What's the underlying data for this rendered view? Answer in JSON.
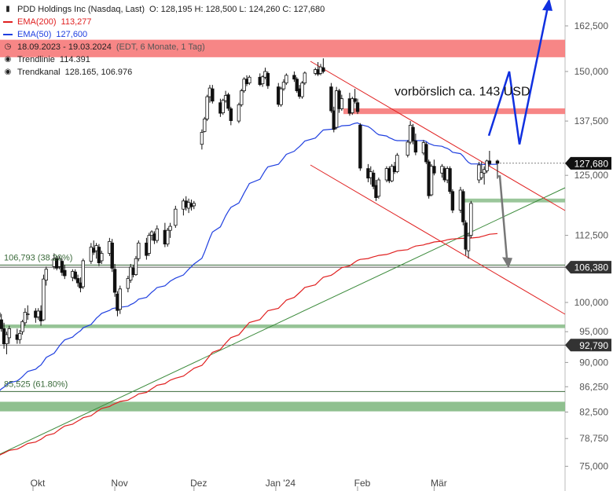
{
  "header": {
    "instrument": "PDD Holdings Inc (Nasdaq, Last)",
    "ohlc": "O: 128,195  H: 128,500  L: 124,260  C: 127,680"
  },
  "legend": [
    {
      "label": "EMA(200)",
      "value": "113,277",
      "color": "#e02020",
      "kind": "line"
    },
    {
      "label": "EMA(50)",
      "value": "127,600",
      "color": "#2040e0",
      "kind": "line"
    },
    {
      "label": "18.09.2023 - 19.03.2024",
      "value": "(EDT, 6 Monate, 1 Tag)",
      "kind": "clock-icon"
    },
    {
      "label": "Trendlinie",
      "value": "114.391",
      "kind": "target-icon"
    },
    {
      "label": "Trendkanal",
      "value": "128.165, 106.976",
      "kind": "target-icon"
    }
  ],
  "colors": {
    "candle": "#111111",
    "ema200": "#e02020",
    "ema50": "#2040e0",
    "trend_green": "#3a8a3a",
    "channel_red": "#e02020",
    "resistance_zone": "#f77f7f",
    "support_zone": "#8fc08f",
    "bullish_arrow": "#1030e0",
    "bearish_arrow": "#777777",
    "price_tag": "#111111"
  },
  "chart_data": {
    "type": "candlestick",
    "title": "PDD Holdings Inc (Nasdaq, Last)",
    "y_scale": "log",
    "y_ticks": [
      "162,500",
      "150,000",
      "137,500",
      "125,000",
      "112,500",
      "100,000",
      "95,000",
      "90,000",
      "86,250",
      "82,500",
      "78,750",
      "75,000"
    ],
    "x_ticks": [
      "Okt",
      "Nov",
      "Dez",
      "Jan '24",
      "Feb",
      "Mär"
    ],
    "price_tags": [
      "127,680",
      "106,380",
      "92,790"
    ],
    "fib_labels": [
      {
        "label": "106,793 (38.20%)",
        "value": 106.793
      },
      {
        "label": "85,525 (61.80%)",
        "value": 85.525
      }
    ],
    "annotation": "vorbörslich ca. 143 USD",
    "candles": [
      {
        "date": "2023-09-18",
        "o": 97.5,
        "h": 99.0,
        "l": 96.0,
        "c": 98.2
      },
      {
        "date": "2023-09-19",
        "o": 97.0,
        "h": 98.0,
        "l": 95.0,
        "c": 95.5
      },
      {
        "date": "2023-09-20",
        "o": 95.5,
        "h": 96.5,
        "l": 92.2,
        "c": 93.0
      },
      {
        "date": "2023-09-21",
        "o": 93.0,
        "h": 95.0,
        "l": 91.3,
        "c": 94.5
      },
      {
        "date": "2023-09-22",
        "o": 94.0,
        "h": 96.0,
        "l": 93.0,
        "c": 95.5
      },
      {
        "date": "2023-09-25",
        "o": 94.5,
        "h": 95.5,
        "l": 93.0,
        "c": 93.7
      },
      {
        "date": "2023-09-26",
        "o": 93.7,
        "h": 95.3,
        "l": 93.0,
        "c": 94.7
      },
      {
        "date": "2023-09-27",
        "o": 95.0,
        "h": 97.0,
        "l": 94.5,
        "c": 96.7
      },
      {
        "date": "2023-09-28",
        "o": 96.5,
        "h": 99.0,
        "l": 96.0,
        "c": 98.3
      },
      {
        "date": "2023-09-29",
        "o": 98.0,
        "h": 99.5,
        "l": 97.0,
        "c": 98.0
      },
      {
        "date": "2023-10-02",
        "o": 98.5,
        "h": 99.0,
        "l": 96.5,
        "c": 97.4
      },
      {
        "date": "2023-10-03",
        "o": 97.5,
        "h": 99.0,
        "l": 97.0,
        "c": 98.5
      },
      {
        "date": "2023-10-04",
        "o": 98.5,
        "h": 99.5,
        "l": 96.0,
        "c": 96.8
      },
      {
        "date": "2023-10-05",
        "o": 97.0,
        "h": 105.0,
        "l": 96.8,
        "c": 104.2
      },
      {
        "date": "2023-10-06",
        "o": 104.0,
        "h": 106.5,
        "l": 103.0,
        "c": 106.0
      },
      {
        "date": "2023-10-09",
        "o": 106.5,
        "h": 109.0,
        "l": 106.0,
        "c": 108.0
      },
      {
        "date": "2023-10-10",
        "o": 108.0,
        "h": 108.5,
        "l": 105.8,
        "c": 106.2
      },
      {
        "date": "2023-10-11",
        "o": 106.5,
        "h": 108.5,
        "l": 106.0,
        "c": 108.0
      },
      {
        "date": "2023-10-12",
        "o": 107.5,
        "h": 108.0,
        "l": 104.8,
        "c": 105.4
      },
      {
        "date": "2023-10-13",
        "o": 105.8,
        "h": 106.8,
        "l": 104.2,
        "c": 104.8
      },
      {
        "date": "2023-10-16",
        "o": 104.5,
        "h": 106.0,
        "l": 103.8,
        "c": 105.6
      },
      {
        "date": "2023-10-17",
        "o": 105.5,
        "h": 106.0,
        "l": 104.0,
        "c": 104.3
      },
      {
        "date": "2023-10-18",
        "o": 104.3,
        "h": 105.0,
        "l": 102.8,
        "c": 103.5
      },
      {
        "date": "2023-10-19",
        "o": 103.5,
        "h": 104.5,
        "l": 101.8,
        "c": 102.6
      },
      {
        "date": "2023-10-20",
        "o": 102.8,
        "h": 108.0,
        "l": 102.4,
        "c": 107.6
      },
      {
        "date": "2023-10-23",
        "o": 107.5,
        "h": 111.0,
        "l": 107.0,
        "c": 110.2
      },
      {
        "date": "2023-10-24",
        "o": 110.0,
        "h": 111.5,
        "l": 108.7,
        "c": 109.2
      },
      {
        "date": "2023-10-25",
        "o": 109.5,
        "h": 111.0,
        "l": 108.0,
        "c": 110.5
      },
      {
        "date": "2023-10-26",
        "o": 110.2,
        "h": 110.8,
        "l": 106.6,
        "c": 107.2
      },
      {
        "date": "2023-10-27",
        "o": 107.6,
        "h": 109.5,
        "l": 107.0,
        "c": 109.0
      },
      {
        "date": "2023-10-30",
        "o": 109.0,
        "h": 112.0,
        "l": 108.5,
        "c": 111.3
      },
      {
        "date": "2023-10-31",
        "o": 111.0,
        "h": 111.8,
        "l": 105.5,
        "c": 106.2
      },
      {
        "date": "2023-11-01",
        "o": 106.0,
        "h": 107.0,
        "l": 101.0,
        "c": 101.8
      },
      {
        "date": "2023-11-02",
        "o": 101.5,
        "h": 102.0,
        "l": 97.6,
        "c": 98.6
      },
      {
        "date": "2023-11-03",
        "o": 98.8,
        "h": 103.0,
        "l": 98.0,
        "c": 102.4
      },
      {
        "date": "2023-11-06",
        "o": 102.5,
        "h": 104.8,
        "l": 101.8,
        "c": 104.3
      },
      {
        "date": "2023-11-07",
        "o": 104.0,
        "h": 107.0,
        "l": 103.5,
        "c": 106.4
      },
      {
        "date": "2023-11-08",
        "o": 106.2,
        "h": 106.8,
        "l": 104.5,
        "c": 105.0
      },
      {
        "date": "2023-11-09",
        "o": 105.0,
        "h": 108.5,
        "l": 104.8,
        "c": 108.0
      },
      {
        "date": "2023-11-10",
        "o": 108.0,
        "h": 111.5,
        "l": 107.5,
        "c": 111.0
      },
      {
        "date": "2023-11-13",
        "o": 111.0,
        "h": 112.0,
        "l": 107.8,
        "c": 108.6
      },
      {
        "date": "2023-11-14",
        "o": 109.0,
        "h": 113.0,
        "l": 108.5,
        "c": 112.5
      },
      {
        "date": "2023-11-15",
        "o": 112.5,
        "h": 113.5,
        "l": 111.5,
        "c": 113.2
      },
      {
        "date": "2023-11-16",
        "o": 112.8,
        "h": 113.3,
        "l": 110.8,
        "c": 111.5
      },
      {
        "date": "2023-11-17",
        "o": 111.5,
        "h": 114.5,
        "l": 111.0,
        "c": 113.8
      },
      {
        "date": "2023-11-20",
        "o": 113.5,
        "h": 115.0,
        "l": 110.2,
        "c": 110.8
      },
      {
        "date": "2023-11-21",
        "o": 110.8,
        "h": 114.0,
        "l": 110.3,
        "c": 113.5
      },
      {
        "date": "2023-11-22",
        "o": 113.5,
        "h": 115.0,
        "l": 112.0,
        "c": 114.3
      },
      {
        "date": "2023-11-24",
        "o": 114.5,
        "h": 118.5,
        "l": 114.0,
        "c": 117.8
      },
      {
        "date": "2023-11-27",
        "o": 117.8,
        "h": 120.0,
        "l": 116.5,
        "c": 119.5
      },
      {
        "date": "2023-11-28",
        "o": 119.5,
        "h": 120.5,
        "l": 117.5,
        "c": 118.2
      },
      {
        "date": "2023-11-29",
        "o": 118.0,
        "h": 120.0,
        "l": 117.0,
        "c": 119.2
      },
      {
        "date": "2023-11-30",
        "o": 119.0,
        "h": 119.8,
        "l": 117.5,
        "c": 118.3
      },
      {
        "date": "2023-12-01",
        "o": 118.5,
        "h": 119.5,
        "l": 117.8,
        "c": 119.0
      },
      {
        "date": "2023-12-04",
        "o": 132.0,
        "h": 135.5,
        "l": 130.8,
        "c": 134.8
      },
      {
        "date": "2023-12-05",
        "o": 135.0,
        "h": 138.5,
        "l": 134.8,
        "c": 138.0
      },
      {
        "date": "2023-12-06",
        "o": 138.0,
        "h": 144.0,
        "l": 137.5,
        "c": 143.5
      },
      {
        "date": "2023-12-07",
        "o": 143.5,
        "h": 146.5,
        "l": 142.0,
        "c": 145.7
      },
      {
        "date": "2023-12-08",
        "o": 145.5,
        "h": 146.5,
        "l": 141.8,
        "c": 142.4
      },
      {
        "date": "2023-12-11",
        "o": 142.0,
        "h": 143.0,
        "l": 138.5,
        "c": 139.4
      },
      {
        "date": "2023-12-12",
        "o": 139.5,
        "h": 143.0,
        "l": 139.0,
        "c": 142.6
      },
      {
        "date": "2023-12-13",
        "o": 142.5,
        "h": 145.0,
        "l": 142.0,
        "c": 143.8
      },
      {
        "date": "2023-12-14",
        "o": 144.0,
        "h": 144.5,
        "l": 140.0,
        "c": 140.6
      },
      {
        "date": "2023-12-15",
        "o": 140.5,
        "h": 141.0,
        "l": 136.5,
        "c": 137.6
      },
      {
        "date": "2023-12-18",
        "o": 137.5,
        "h": 142.0,
        "l": 137.0,
        "c": 141.5
      },
      {
        "date": "2023-12-19",
        "o": 141.5,
        "h": 145.5,
        "l": 141.0,
        "c": 145.0
      },
      {
        "date": "2023-12-20",
        "o": 145.0,
        "h": 148.5,
        "l": 144.5,
        "c": 148.0
      },
      {
        "date": "2023-12-21",
        "o": 148.0,
        "h": 149.0,
        "l": 146.2,
        "c": 146.8
      },
      {
        "date": "2023-12-22",
        "o": 147.0,
        "h": 149.0,
        "l": 146.5,
        "c": 148.5
      },
      {
        "date": "2023-12-26",
        "o": 148.5,
        "h": 149.5,
        "l": 146.2,
        "c": 146.6
      },
      {
        "date": "2023-12-27",
        "o": 146.8,
        "h": 149.0,
        "l": 146.0,
        "c": 148.6
      },
      {
        "date": "2023-12-28",
        "o": 148.5,
        "h": 151.0,
        "l": 148.0,
        "c": 150.0
      },
      {
        "date": "2023-12-29",
        "o": 149.5,
        "h": 150.0,
        "l": 145.5,
        "c": 146.3
      },
      {
        "date": "2024-01-02",
        "o": 146.0,
        "h": 147.0,
        "l": 141.0,
        "c": 141.6
      },
      {
        "date": "2024-01-03",
        "o": 141.5,
        "h": 146.0,
        "l": 141.0,
        "c": 145.5
      },
      {
        "date": "2024-01-04",
        "o": 145.5,
        "h": 148.0,
        "l": 145.0,
        "c": 147.2
      },
      {
        "date": "2024-01-05",
        "o": 147.0,
        "h": 149.5,
        "l": 146.5,
        "c": 149.0
      },
      {
        "date": "2024-01-08",
        "o": 149.0,
        "h": 150.0,
        "l": 147.3,
        "c": 148.0
      },
      {
        "date": "2024-01-09",
        "o": 148.0,
        "h": 148.5,
        "l": 144.5,
        "c": 145.0
      },
      {
        "date": "2024-01-10",
        "o": 145.5,
        "h": 146.5,
        "l": 143.0,
        "c": 143.6
      },
      {
        "date": "2024-01-11",
        "o": 143.5,
        "h": 147.5,
        "l": 143.0,
        "c": 147.0
      },
      {
        "date": "2024-01-12",
        "o": 147.0,
        "h": 150.0,
        "l": 146.5,
        "c": 149.6
      },
      {
        "date": "2024-01-16",
        "o": 149.5,
        "h": 151.0,
        "l": 149.0,
        "c": 150.5
      },
      {
        "date": "2024-01-17",
        "o": 150.5,
        "h": 152.5,
        "l": 148.8,
        "c": 149.3
      },
      {
        "date": "2024-01-18",
        "o": 149.5,
        "h": 152.0,
        "l": 149.0,
        "c": 151.2
      },
      {
        "date": "2024-01-19",
        "o": 151.0,
        "h": 153.5,
        "l": 149.5,
        "c": 150.0
      },
      {
        "date": "2024-01-22",
        "o": 146.0,
        "h": 147.0,
        "l": 139.5,
        "c": 140.0
      },
      {
        "date": "2024-01-23",
        "o": 140.0,
        "h": 141.0,
        "l": 134.8,
        "c": 135.5
      },
      {
        "date": "2024-01-24",
        "o": 136.0,
        "h": 146.0,
        "l": 135.5,
        "c": 145.0
      },
      {
        "date": "2024-01-25",
        "o": 145.0,
        "h": 145.5,
        "l": 139.5,
        "c": 140.5
      },
      {
        "date": "2024-01-26",
        "o": 140.5,
        "h": 144.0,
        "l": 140.0,
        "c": 143.0
      },
      {
        "date": "2024-01-29",
        "o": 143.0,
        "h": 144.5,
        "l": 138.8,
        "c": 139.4
      },
      {
        "date": "2024-01-30",
        "o": 139.5,
        "h": 143.5,
        "l": 139.0,
        "c": 143.0
      },
      {
        "date": "2024-01-31",
        "o": 143.0,
        "h": 145.5,
        "l": 141.8,
        "c": 142.3
      },
      {
        "date": "2024-02-01",
        "o": 142.0,
        "h": 143.0,
        "l": 139.2,
        "c": 139.8
      },
      {
        "date": "2024-02-02",
        "o": 136.5,
        "h": 137.0,
        "l": 126.0,
        "c": 126.6
      },
      {
        "date": "2024-02-05",
        "o": 126.5,
        "h": 127.5,
        "l": 123.5,
        "c": 124.4
      },
      {
        "date": "2024-02-06",
        "o": 124.5,
        "h": 127.0,
        "l": 123.0,
        "c": 125.8
      },
      {
        "date": "2024-02-07",
        "o": 125.5,
        "h": 126.2,
        "l": 122.0,
        "c": 122.6
      },
      {
        "date": "2024-02-08",
        "o": 122.8,
        "h": 124.0,
        "l": 119.5,
        "c": 120.2
      },
      {
        "date": "2024-02-09",
        "o": 120.5,
        "h": 124.5,
        "l": 120.0,
        "c": 124.0
      },
      {
        "date": "2024-02-12",
        "o": 124.0,
        "h": 127.0,
        "l": 123.5,
        "c": 126.5
      },
      {
        "date": "2024-02-13",
        "o": 126.5,
        "h": 127.0,
        "l": 123.3,
        "c": 123.8
      },
      {
        "date": "2024-02-14",
        "o": 123.8,
        "h": 127.5,
        "l": 123.5,
        "c": 127.0
      },
      {
        "date": "2024-02-15",
        "o": 127.0,
        "h": 128.0,
        "l": 125.3,
        "c": 125.8
      },
      {
        "date": "2024-02-16",
        "o": 125.8,
        "h": 130.0,
        "l": 125.5,
        "c": 129.5
      },
      {
        "date": "2024-02-20",
        "o": 129.5,
        "h": 133.0,
        "l": 129.0,
        "c": 132.5
      },
      {
        "date": "2024-02-21",
        "o": 132.5,
        "h": 137.5,
        "l": 132.0,
        "c": 136.5
      },
      {
        "date": "2024-02-22",
        "o": 136.0,
        "h": 136.8,
        "l": 132.0,
        "c": 132.8
      },
      {
        "date": "2024-02-23",
        "o": 132.8,
        "h": 134.5,
        "l": 129.5,
        "c": 130.2
      },
      {
        "date": "2024-02-26",
        "o": 130.0,
        "h": 133.0,
        "l": 129.5,
        "c": 132.4
      },
      {
        "date": "2024-02-27",
        "o": 132.0,
        "h": 132.5,
        "l": 127.5,
        "c": 128.0
      },
      {
        "date": "2024-02-28",
        "o": 128.0,
        "h": 128.5,
        "l": 120.0,
        "c": 120.6
      },
      {
        "date": "2024-02-29",
        "o": 120.8,
        "h": 127.5,
        "l": 120.5,
        "c": 127.0
      },
      {
        "date": "2024-03-01",
        "o": 127.0,
        "h": 128.5,
        "l": 125.0,
        "c": 125.5
      },
      {
        "date": "2024-03-04",
        "o": 125.5,
        "h": 127.5,
        "l": 124.5,
        "c": 127.0
      },
      {
        "date": "2024-03-05",
        "o": 126.5,
        "h": 127.0,
        "l": 123.5,
        "c": 124.0
      },
      {
        "date": "2024-03-06",
        "o": 124.0,
        "h": 127.0,
        "l": 123.3,
        "c": 126.5
      },
      {
        "date": "2024-03-07",
        "o": 126.5,
        "h": 127.0,
        "l": 121.0,
        "c": 121.5
      },
      {
        "date": "2024-03-08",
        "o": 121.5,
        "h": 122.0,
        "l": 117.0,
        "c": 117.6
      },
      {
        "date": "2024-03-11",
        "o": 117.6,
        "h": 122.5,
        "l": 117.0,
        "c": 121.8
      },
      {
        "date": "2024-03-12",
        "o": 121.5,
        "h": 122.0,
        "l": 114.5,
        "c": 115.2
      },
      {
        "date": "2024-03-13",
        "o": 115.0,
        "h": 115.5,
        "l": 108.6,
        "c": 109.8
      },
      {
        "date": "2024-03-14",
        "o": 109.5,
        "h": 113.0,
        "l": 108.0,
        "c": 112.4
      },
      {
        "date": "2024-03-15",
        "o": 112.5,
        "h": 119.5,
        "l": 112.0,
        "c": 119.0
      },
      {
        "date": "2024-03-18",
        "o": 124.0,
        "h": 128.0,
        "l": 123.3,
        "c": 127.3
      },
      {
        "date": "2024-03-19",
        "o": 124.5,
        "h": 128.0,
        "l": 124.0,
        "c": 125.6
      },
      {
        "date": "2024-03-20",
        "o": 125.5,
        "h": 127.0,
        "l": 123.0,
        "c": 126.3
      },
      {
        "date": "2024-03-21",
        "o": 126.0,
        "h": 128.5,
        "l": 125.5,
        "c": 128.2
      },
      {
        "date": "2024-03-22",
        "o": 128.2,
        "h": 130.5,
        "l": 127.0,
        "c": 127.6
      },
      {
        "date": "2024-03-25",
        "o": 128.195,
        "h": 128.5,
        "l": 124.26,
        "c": 127.68
      }
    ]
  }
}
